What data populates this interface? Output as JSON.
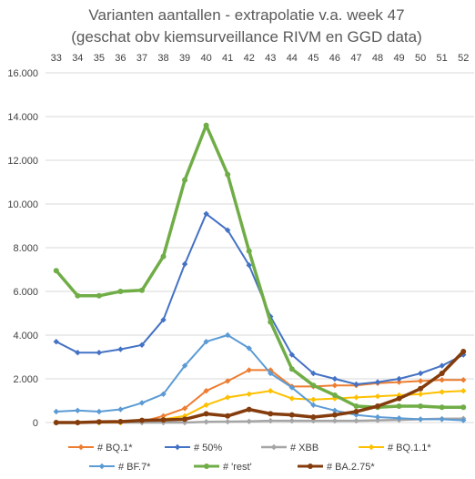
{
  "chart_data": {
    "type": "line",
    "title": [
      "Varianten aantallen - extrapolatie v.a. week 47",
      "(geschat obv kiemsurveillance RIVM en GGD data)"
    ],
    "xlabel": "",
    "ylabel": "",
    "x_position": "top",
    "x": [
      "33",
      "34",
      "35",
      "36",
      "37",
      "38",
      "39",
      "40",
      "41",
      "42",
      "43",
      "44",
      "45",
      "46",
      "47",
      "48",
      "49",
      "50",
      "51",
      "52"
    ],
    "ylim": [
      0,
      16000
    ],
    "yticks": [
      0,
      2000,
      4000,
      6000,
      8000,
      10000,
      12000,
      14000,
      16000
    ],
    "ytick_labels": [
      "0",
      "2.000",
      "4.000",
      "6.000",
      "8.000",
      "10.000",
      "12.000",
      "14.000",
      "16.000"
    ],
    "grid": true,
    "legend_position": "bottom",
    "series": [
      {
        "name": "# BQ.1*",
        "color": "#ed7d31",
        "width": 2,
        "marker": "diamond",
        "values": [
          0,
          0,
          0,
          0,
          50,
          300,
          650,
          1450,
          1900,
          2400,
          2400,
          1650,
          1650,
          1700,
          1700,
          1800,
          1850,
          1900,
          1950,
          1950
        ]
      },
      {
        "name": "# 50%",
        "color": "#4472c4",
        "width": 2,
        "marker": "diamond",
        "values": [
          3700,
          3200,
          3200,
          3350,
          3550,
          4700,
          7250,
          9550,
          8800,
          7200,
          4850,
          3100,
          2250,
          2000,
          1750,
          1850,
          2000,
          2250,
          2600,
          3100
        ]
      },
      {
        "name": "# XBB",
        "color": "#a5a5a5",
        "width": 2.5,
        "marker": "diamond",
        "values": [
          0,
          0,
          0,
          0,
          0,
          0,
          0,
          30,
          40,
          50,
          80,
          80,
          80,
          80,
          80,
          100,
          120,
          150,
          170,
          180
        ]
      },
      {
        "name": "# BQ.1.1*",
        "color": "#ffc000",
        "width": 2,
        "marker": "diamond",
        "values": [
          0,
          0,
          0,
          0,
          100,
          150,
          300,
          800,
          1150,
          1300,
          1450,
          1100,
          1050,
          1100,
          1150,
          1200,
          1250,
          1300,
          1400,
          1450
        ]
      },
      {
        "name": "# BF.7*",
        "color": "#5b9bd5",
        "width": 2,
        "marker": "diamond",
        "values": [
          500,
          550,
          500,
          600,
          900,
          1300,
          2600,
          3700,
          4000,
          3400,
          2250,
          1600,
          800,
          550,
          350,
          250,
          200,
          150,
          150,
          100
        ]
      },
      {
        "name": "# 'rest'",
        "color": "#70ad47",
        "width": 3.5,
        "marker": "circle",
        "values": [
          6950,
          5800,
          5800,
          6000,
          6050,
          7600,
          11100,
          13600,
          11350,
          7850,
          4600,
          2450,
          1700,
          1250,
          750,
          700,
          750,
          750,
          700,
          700
        ]
      },
      {
        "name": "# BA.2.75*",
        "color": "#843c0c",
        "width": 3.5,
        "marker": "circle",
        "values": [
          0,
          0,
          30,
          40,
          100,
          120,
          150,
          400,
          300,
          600,
          400,
          350,
          250,
          350,
          500,
          750,
          1100,
          1550,
          2250,
          3250
        ]
      }
    ]
  }
}
